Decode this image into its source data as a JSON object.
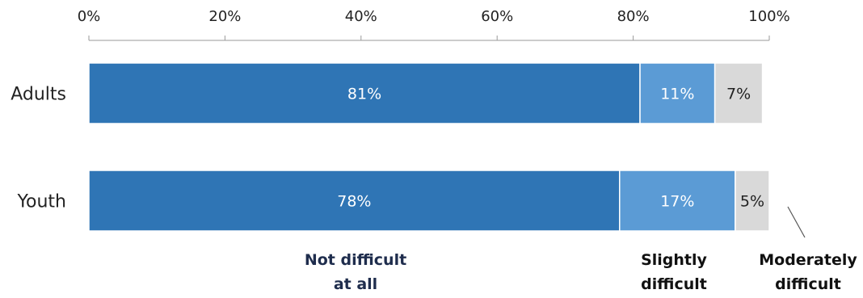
{
  "chart_data": {
    "type": "bar",
    "orientation": "horizontal",
    "stacked": true,
    "categories": [
      "Adults",
      "Youth"
    ],
    "series": [
      {
        "name": "Not difficult at all",
        "values": [
          81,
          78
        ],
        "labels": [
          "81%",
          "78%"
        ],
        "color": "#2f75b5",
        "label_color": "#ffffff"
      },
      {
        "name": "Slightly difficult",
        "values": [
          11,
          17
        ],
        "labels": [
          "11%",
          "17%"
        ],
        "color": "#5b9bd5",
        "label_color": "#ffffff"
      },
      {
        "name": "Moderately difficult",
        "values": [
          7,
          5
        ],
        "labels": [
          "7%",
          "5%"
        ],
        "color": "#d9d9d9",
        "label_color": "#222222"
      }
    ],
    "xlim": [
      0,
      100
    ],
    "ticks": [
      0,
      20,
      40,
      60,
      80,
      100
    ],
    "tick_labels": [
      "0%",
      "20%",
      "40%",
      "60%",
      "80%",
      "100%"
    ],
    "axis_position": "top",
    "grid": false,
    "legend": {
      "placement": "bottom",
      "items": [
        {
          "lines": [
            "Not difficult",
            "at all"
          ],
          "color": "#1f2d4d"
        },
        {
          "lines": [
            "Slightly",
            "difficult"
          ],
          "color": "#111111"
        },
        {
          "lines": [
            "Moderately",
            "difficult"
          ],
          "color": "#111111"
        }
      ]
    }
  }
}
